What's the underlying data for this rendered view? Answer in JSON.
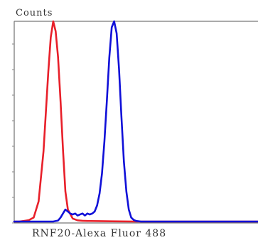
{
  "chart_data": {
    "type": "line",
    "ylabel": "Counts",
    "xlabel": "RNF20-Alexa Fluor 488",
    "xlim": [
      0,
      100
    ],
    "ylim": [
      0,
      100
    ],
    "grid": false,
    "colors": {
      "red_series": "#e8202a",
      "blue_series": "#1010d8",
      "axis": "#555555"
    },
    "series": [
      {
        "color": "#e8202a",
        "x": [
          0,
          2,
          4,
          6,
          8,
          10,
          12,
          14,
          15,
          16,
          17,
          18,
          19,
          20,
          21,
          22,
          24,
          26,
          28,
          30,
          35,
          40,
          50,
          60,
          70,
          80,
          100
        ],
        "y": [
          0,
          0,
          0.3,
          0.7,
          2,
          10,
          35,
          75,
          92,
          100,
          95,
          82,
          60,
          36,
          15,
          6,
          1.5,
          0.6,
          0.4,
          0.3,
          0.2,
          0.1,
          0,
          0,
          0,
          0,
          0
        ]
      },
      {
        "color": "#1010d8",
        "x": [
          0,
          10,
          16,
          18,
          19,
          20,
          21,
          22,
          23,
          24,
          25,
          26,
          27,
          28,
          29,
          30,
          31,
          32,
          33,
          34,
          35,
          36,
          37,
          38,
          39,
          40,
          41,
          42,
          43,
          44,
          45,
          46,
          47,
          48,
          49,
          50,
          52,
          55,
          60,
          70,
          80,
          90,
          100
        ],
        "y": [
          0,
          0,
          0,
          0.5,
          2,
          4,
          6,
          5,
          4,
          3.5,
          4,
          3,
          3.5,
          4,
          3,
          4,
          3.5,
          4,
          5,
          8,
          14,
          24,
          40,
          60,
          82,
          97,
          100,
          94,
          76,
          52,
          30,
          15,
          6,
          2,
          0.8,
          0.3,
          0,
          0,
          0,
          0,
          0,
          0,
          0
        ]
      }
    ]
  }
}
